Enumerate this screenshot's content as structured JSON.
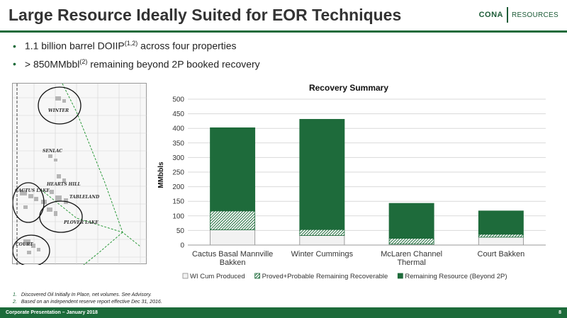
{
  "slide": {
    "title": "Large Resource Ideally Suited for EOR Techniques",
    "bullets": [
      {
        "text": "1.1 billion barrel DOIIP",
        "sup": "(1,2)",
        "after": " across four properties"
      },
      {
        "text": "> 850MMbbl",
        "sup": "(2)",
        "after": " remaining beyond 2P booked recovery"
      }
    ],
    "footnotes": [
      {
        "num": "1.",
        "text": "Discovered Oil Initially In Place, net volumes. See Advisory."
      },
      {
        "num": "2.",
        "text": "Based on an independent reserve report effective Dec 31, 2016."
      }
    ],
    "footer_left": "Corporate Presentation – January 2018",
    "footer_right": "8"
  },
  "logo": {
    "left": "CONA",
    "right": "RESOURCES"
  },
  "map": {
    "labels": [
      "WINTER",
      "SENLAC",
      "HEARTS HILL",
      "CACTUS LAKE",
      "TABLELAND",
      "PLOVER LAKE",
      "COURT"
    ]
  },
  "colors": {
    "brand": "#1c6b3a",
    "remaining": "#1e6b3b",
    "produced": "#f2f2f2"
  },
  "chart_data": {
    "type": "bar",
    "title": "Recovery Summary",
    "ylabel": "MMbbls",
    "xlabel": "",
    "ylim": [
      0,
      500
    ],
    "yticks": [
      0,
      50,
      100,
      150,
      200,
      250,
      300,
      350,
      400,
      450,
      500
    ],
    "categories": [
      [
        "Cactus Basal Mannville",
        "Bakken"
      ],
      [
        "Winter Cummings"
      ],
      [
        "McLaren Channel",
        "Thermal"
      ],
      [
        "Court Bakken"
      ]
    ],
    "series": [
      {
        "name": "WI Cum Produced",
        "values": [
          52,
          33,
          3,
          27
        ]
      },
      {
        "name": "Proved+Probable Remaining Recoverable",
        "values": [
          65,
          20,
          20,
          10
        ]
      },
      {
        "name": "Remaining Resource (Beyond 2P)",
        "values": [
          285,
          378,
          120,
          80
        ]
      }
    ],
    "legend": "bottom",
    "grid": true
  }
}
